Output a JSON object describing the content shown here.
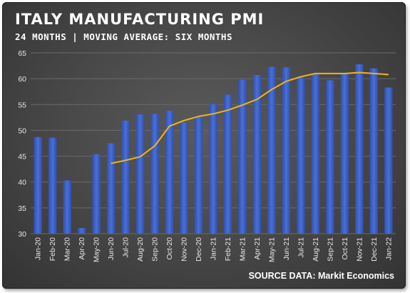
{
  "title": "ITALY MANUFACTURING PMI",
  "subtitle": "24 MONTHS | MOVING AVERAGE: SIX MONTHS",
  "source": "SOURCE DATA: Markit Economics",
  "colors": {
    "bar": "#4a6fd6",
    "bar_dark": "#2f4fb0",
    "line": "#f0b51a",
    "grid": "#6a6a6a"
  },
  "chart_data": {
    "type": "bar",
    "title": "ITALY MANUFACTURING PMI",
    "subtitle": "24 MONTHS | MOVING AVERAGE: SIX MONTHS",
    "categories": [
      "Jan-20",
      "Feb-20",
      "Mar-20",
      "Apr-20",
      "May-20",
      "Jun-20",
      "Jul-20",
      "Aug-20",
      "Sep-20",
      "Oct-20",
      "Nov-20",
      "Dec-20",
      "Jan-21",
      "Feb-21",
      "Mar-21",
      "Apr-21",
      "May-21",
      "Jun-21",
      "Jul-21",
      "Aug-21",
      "Sep-21",
      "Oct-21",
      "Nov-21",
      "Dec-21",
      "Jan-22"
    ],
    "ylim": [
      30,
      65
    ],
    "yticks": [
      30,
      35,
      40,
      45,
      50,
      55,
      60,
      65
    ],
    "grid": true,
    "legend": "none",
    "series": [
      {
        "type": "bar",
        "values": [
          48.7,
          48.6,
          40.3,
          31.1,
          45.4,
          47.5,
          51.9,
          53.1,
          53.2,
          53.8,
          51.5,
          52.8,
          55.1,
          56.9,
          59.8,
          60.7,
          62.3,
          62.2,
          60.3,
          60.9,
          59.7,
          61.1,
          62.8,
          62.0,
          58.3
        ]
      },
      {
        "type": "line",
        "values": [
          null,
          null,
          null,
          null,
          null,
          43.6,
          44.2,
          44.9,
          47.0,
          50.8,
          51.9,
          52.7,
          53.2,
          53.9,
          54.9,
          56.0,
          57.9,
          59.5,
          60.4,
          61.0,
          61.0,
          61.0,
          61.2,
          61.0,
          60.8
        ]
      }
    ]
  }
}
